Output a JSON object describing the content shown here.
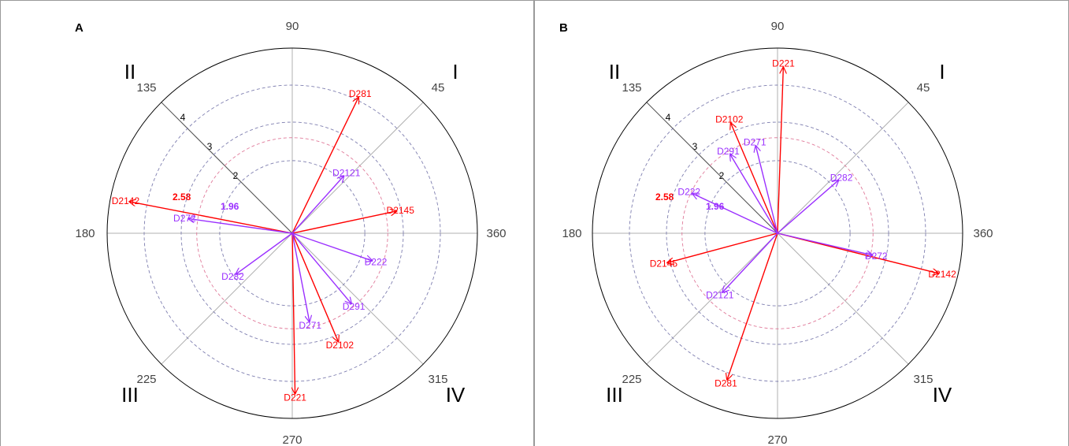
{
  "panels": [
    {
      "label": "A",
      "angle_labels": [
        "90",
        "45",
        "360",
        "315",
        "270",
        "225",
        "180",
        "135"
      ],
      "quadrant_labels": [
        "I",
        "II",
        "III",
        "IV"
      ],
      "r_ticks": [
        "2",
        "3",
        "4"
      ],
      "thresholds": [
        {
          "label": "2.58",
          "value": 2.58,
          "color": "#ff0000"
        },
        {
          "label": "1.96",
          "value": 1.96,
          "color": "#9b30ff"
        }
      ]
    },
    {
      "label": "B",
      "angle_labels": [
        "90",
        "45",
        "360",
        "315",
        "270",
        "225",
        "180",
        "135"
      ],
      "quadrant_labels": [
        "I",
        "II",
        "III",
        "IV"
      ],
      "r_ticks": [
        "2",
        "3",
        "4"
      ],
      "thresholds": [
        {
          "label": "2.58",
          "value": 2.58,
          "color": "#ff0000"
        },
        {
          "label": "1.96",
          "value": 1.96,
          "color": "#9b30ff"
        }
      ]
    }
  ],
  "colors": {
    "red_series": "#ff0000",
    "purple_series": "#9b30ff",
    "axis": "#b0b0b0",
    "outer_circle": "#000000",
    "grid_circle": "#7f7fb0"
  },
  "chart_data": [
    {
      "type": "polar-vector",
      "panel": "A",
      "r_axis": {
        "max": 5,
        "grid": [
          1.96,
          2.58,
          3,
          4
        ]
      },
      "theta_axis": {
        "unit": "degrees",
        "ticks": [
          45,
          90,
          135,
          180,
          225,
          270,
          315,
          360
        ]
      },
      "series": [
        {
          "color": "#ff0000",
          "points": [
            {
              "name": "D281",
              "angle": 64,
              "r": 4.1
            },
            {
              "name": "D2145",
              "angle": 12,
              "r": 2.9
            },
            {
              "name": "D2142",
              "angle": 169,
              "r": 4.5
            },
            {
              "name": "D2102",
              "angle": 293,
              "r": 3.2
            },
            {
              "name": "D221",
              "angle": 271,
              "r": 4.35
            }
          ]
        },
        {
          "color": "#9b30ff",
          "points": [
            {
              "name": "D2121",
              "angle": 48,
              "r": 2.1
            },
            {
              "name": "D222",
              "angle": 341,
              "r": 2.3
            },
            {
              "name": "D291",
              "angle": 310,
              "r": 2.5
            },
            {
              "name": "D271",
              "angle": 281,
              "r": 2.45
            },
            {
              "name": "D282",
              "angle": 216,
              "r": 1.9
            },
            {
              "name": "D272",
              "angle": 172,
              "r": 2.85
            }
          ]
        }
      ]
    },
    {
      "type": "polar-vector",
      "panel": "B",
      "r_axis": {
        "max": 5,
        "grid": [
          1.96,
          2.58,
          3,
          4
        ]
      },
      "theta_axis": {
        "unit": "degrees",
        "ticks": [
          45,
          90,
          135,
          180,
          225,
          270,
          315,
          360
        ]
      },
      "series": [
        {
          "color": "#ff0000",
          "points": [
            {
              "name": "D221",
              "angle": 88,
              "r": 4.5
            },
            {
              "name": "D2102",
              "angle": 113,
              "r": 3.25
            },
            {
              "name": "D2145",
              "angle": 195,
              "r": 3.1
            },
            {
              "name": "D281",
              "angle": 251,
              "r": 4.2
            },
            {
              "name": "D2142",
              "angle": 346,
              "r": 4.5
            }
          ]
        },
        {
          "color": "#9b30ff",
          "points": [
            {
              "name": "D271",
              "angle": 104,
              "r": 2.45
            },
            {
              "name": "D291",
              "angle": 121,
              "r": 2.5
            },
            {
              "name": "D222",
              "angle": 155,
              "r": 2.55
            },
            {
              "name": "D282",
              "angle": 41,
              "r": 2.2
            },
            {
              "name": "D272",
              "angle": 347,
              "r": 2.65
            },
            {
              "name": "D2121",
              "angle": 227,
              "r": 2.2
            }
          ]
        }
      ]
    }
  ]
}
